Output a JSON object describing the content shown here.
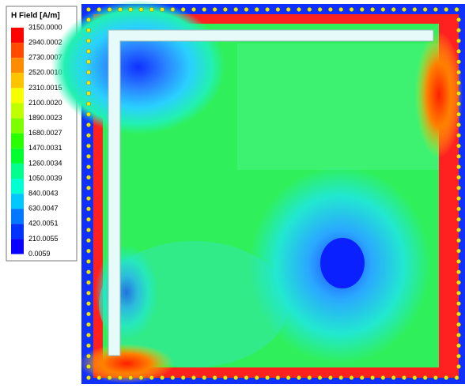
{
  "legend": {
    "title": "H Field [A/m]",
    "labels": [
      "3150.0000",
      "2940.0002",
      "2730.0007",
      "2520.0010",
      "2310.0015",
      "2100.0020",
      "1890.0023",
      "1680.0027",
      "1470.0031",
      "1260.0034",
      "1050.0039",
      "840.0043",
      "630.0047",
      "420.0051",
      "210.0055",
      "0.0059"
    ],
    "colors": [
      "#ff0000",
      "#ff4b00",
      "#ff8c00",
      "#ffc400",
      "#f5ff00",
      "#bfff00",
      "#7dff00",
      "#2aff00",
      "#00ff2e",
      "#00ff8c",
      "#00ffd2",
      "#00c8ff",
      "#0078ff",
      "#0032ff",
      "#0a00ff"
    ]
  }
}
